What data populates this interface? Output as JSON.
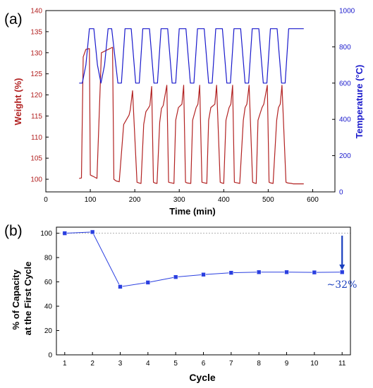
{
  "colors": {
    "weight": "#b22222",
    "temperature": "#1a1acc",
    "capacity": "#2a3fe0",
    "arrow": "#1a3fbf",
    "axis": "#000000"
  },
  "chart_data": [
    {
      "panel_label": "(a)",
      "type": "line",
      "title": "",
      "xlabel": "Time (min)",
      "ylabel_left": "Weight (%)",
      "ylabel_right": "Temperature (°C)",
      "xlim": [
        0,
        650
      ],
      "ylim_left": [
        97,
        140
      ],
      "ylim_right": [
        0,
        1000
      ],
      "xticks": [
        0,
        100,
        200,
        300,
        400,
        500,
        600
      ],
      "yticks_left": [
        100,
        105,
        110,
        115,
        120,
        125,
        130,
        135,
        140
      ],
      "yticks_right": [
        0,
        200,
        400,
        600,
        800,
        1000
      ],
      "grid": false,
      "series": [
        {
          "axis": "left",
          "color": "weight",
          "x": [
            75,
            80,
            84,
            90,
            98,
            100,
            104,
            108,
            115,
            125,
            150,
            153,
            158,
            165,
            175,
            187,
            190,
            195,
            205,
            210,
            214,
            220,
            225,
            230,
            234,
            238,
            242,
            245,
            250,
            256,
            260,
            264,
            272,
            276,
            284,
            288,
            292,
            298,
            306,
            310,
            314,
            318,
            326,
            330,
            338,
            342,
            346,
            351,
            358,
            362,
            366,
            371,
            380,
            384,
            392,
            396,
            400,
            405,
            412,
            416,
            420,
            424,
            432,
            436,
            444,
            448,
            452,
            457,
            465,
            469,
            473,
            477,
            486,
            490,
            498,
            502,
            506,
            511,
            519,
            523,
            527,
            531,
            540,
            544,
            552,
            556,
            560,
            565,
            576,
            580
          ],
          "values": [
            100.2,
            100.3,
            129,
            130.8,
            131,
            101,
            100.8,
            100.6,
            100.2,
            130,
            131.3,
            100,
            99.6,
            99.4,
            113,
            115.2,
            116.5,
            121,
            99.3,
            99.1,
            99.0,
            113,
            116,
            116.8,
            117.5,
            122,
            99.3,
            99.1,
            99.0,
            113.5,
            116.8,
            117.5,
            122.3,
            99.3,
            99.1,
            99.0,
            114,
            117,
            117.8,
            122.3,
            99.3,
            99.1,
            99.0,
            114,
            117,
            117.8,
            122.3,
            99.3,
            99.1,
            99.0,
            114,
            117,
            117.8,
            122.3,
            99.3,
            99.1,
            99.0,
            114,
            117,
            117.8,
            122.3,
            99.3,
            99.1,
            99.0,
            114,
            117,
            117.8,
            122.3,
            99.3,
            99.1,
            99.0,
            114,
            117,
            117.8,
            122.3,
            99.3,
            99.1,
            99.0,
            114,
            117,
            117.8,
            122.3,
            99.3,
            99.1,
            99.0,
            98.9,
            98.9,
            98.9,
            98.9,
            98.9
          ]
        },
        {
          "axis": "right",
          "color": "temperature",
          "x": [
            75,
            82,
            90,
            98,
            108,
            116,
            124,
            132,
            140,
            148,
            162,
            170,
            178,
            186,
            192,
            202,
            210,
            218,
            226,
            233,
            243,
            251,
            259,
            267,
            274,
            284,
            292,
            300,
            308,
            315,
            325,
            333,
            341,
            349,
            356,
            366,
            374,
            382,
            390,
            397,
            407,
            415,
            423,
            431,
            438,
            448,
            456,
            464,
            472,
            479,
            489,
            497,
            505,
            513,
            520,
            530,
            538,
            546,
            554,
            561,
            571,
            580
          ],
          "values": [
            600,
            600,
            700,
            900,
            900,
            700,
            600,
            700,
            900,
            900,
            600,
            600,
            900,
            900,
            900,
            600,
            600,
            900,
            900,
            900,
            600,
            600,
            900,
            900,
            900,
            600,
            600,
            900,
            900,
            900,
            600,
            600,
            900,
            900,
            900,
            600,
            600,
            900,
            900,
            900,
            600,
            600,
            900,
            900,
            900,
            600,
            600,
            900,
            900,
            900,
            600,
            600,
            900,
            900,
            900,
            600,
            600,
            900,
            900,
            900,
            900,
            900
          ]
        }
      ]
    },
    {
      "panel_label": "(b)",
      "type": "line",
      "title": "",
      "xlabel": "Cycle",
      "ylabel": "% of Capacity at the First Cycle",
      "ylabel_lines": [
        "% of Capacity",
        "at the First Cycle"
      ],
      "xlim": [
        0.7,
        11.3
      ],
      "ylim": [
        0,
        105
      ],
      "xticks": [
        1,
        2,
        3,
        4,
        5,
        6,
        7,
        8,
        9,
        10,
        11
      ],
      "yticks": [
        0,
        20,
        40,
        60,
        80,
        100
      ],
      "reference_line": 100,
      "grid": false,
      "x": [
        1,
        2,
        3,
        4,
        5,
        6,
        7,
        8,
        9,
        10,
        11
      ],
      "values": [
        100,
        101,
        56,
        59.5,
        64,
        66,
        67.5,
        68,
        68,
        67.8,
        68
      ],
      "annotation": {
        "text": "~32%",
        "x": 10.45,
        "y": 55
      },
      "arrow": {
        "x": 11,
        "from": 98,
        "to": 72
      }
    }
  ]
}
